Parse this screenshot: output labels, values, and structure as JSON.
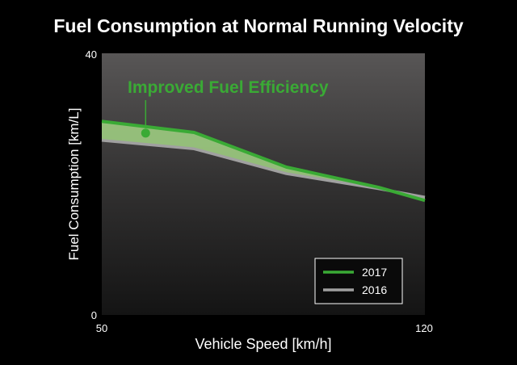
{
  "chart_data": {
    "type": "line",
    "title": "Fuel Consumption at Normal Running Velocity",
    "xlabel": "Vehicle Speed [km/h]",
    "ylabel": "Fuel Consumption [km/L]",
    "xlim": [
      50,
      120
    ],
    "ylim": [
      0,
      40
    ],
    "x_ticks": [
      "50",
      "120"
    ],
    "y_ticks": [
      "0",
      "40"
    ],
    "series": [
      {
        "name": "2017",
        "color": "#3aaa35",
        "points": [
          [
            50,
            29.6
          ],
          [
            70,
            27.9
          ],
          [
            90,
            22.6
          ],
          [
            110,
            19.5
          ],
          [
            120,
            17.5
          ]
        ]
      },
      {
        "name": "2016",
        "color": "#a0a0a0",
        "points": [
          [
            50,
            26.7
          ],
          [
            70,
            25.4
          ],
          [
            90,
            21.6
          ],
          [
            110,
            19.3
          ],
          [
            120,
            18.0
          ]
        ]
      }
    ],
    "annotation": {
      "text": "Improved Fuel Efficiency",
      "color": "#3aaa35",
      "point": [
        59.5,
        27.8
      ]
    },
    "legend": {
      "position": "bottom-right",
      "entries": [
        "2017",
        "2016"
      ]
    }
  }
}
